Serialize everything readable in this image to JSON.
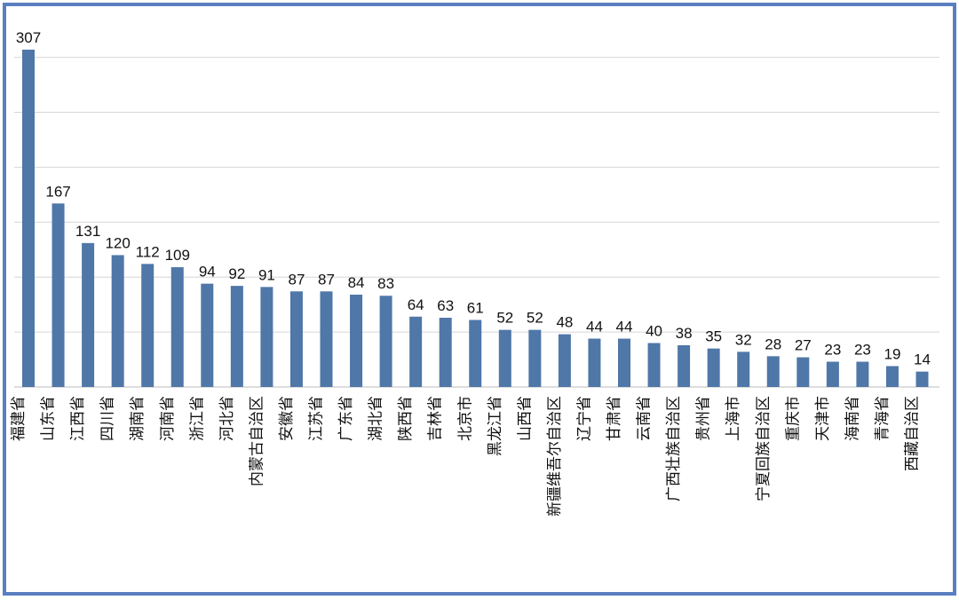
{
  "chart_data": {
    "type": "bar",
    "title": "",
    "xlabel": "",
    "ylabel": "",
    "ylim": [
      0,
      300
    ],
    "grid": true,
    "y_ticks_visible": false,
    "bar_color": "#4f77a8",
    "frame_color": "#5a7fc0",
    "categories": [
      "福建省",
      "山东省",
      "江西省",
      "四川省",
      "湖南省",
      "河南省",
      "浙江省",
      "河北省",
      "内蒙古自治区",
      "安徽省",
      "江苏省",
      "广东省",
      "湖北省",
      "陕西省",
      "吉林省",
      "北京市",
      "黑龙江省",
      "山西省",
      "新疆维吾尔自治区",
      "辽宁省",
      "甘肃省",
      "云南省",
      "广西壮族自治区",
      "贵州省",
      "上海市",
      "宁夏回族自治区",
      "重庆市",
      "天津市",
      "海南省",
      "青海省",
      "西藏自治区"
    ],
    "values": [
      307,
      167,
      131,
      120,
      112,
      109,
      94,
      92,
      91,
      87,
      87,
      84,
      83,
      64,
      63,
      61,
      52,
      52,
      48,
      44,
      44,
      40,
      38,
      35,
      32,
      28,
      27,
      23,
      23,
      19,
      14
    ],
    "value_labels": [
      "307",
      "167",
      "131",
      "120",
      "112",
      "109",
      "94",
      "92",
      "91",
      "87",
      "87",
      "84",
      "83",
      "64",
      "63",
      "61",
      "52",
      "52",
      "48",
      "44",
      "44",
      "40",
      "38",
      "35",
      "32",
      "28",
      "27",
      "23",
      "23",
      "19",
      "14"
    ]
  }
}
